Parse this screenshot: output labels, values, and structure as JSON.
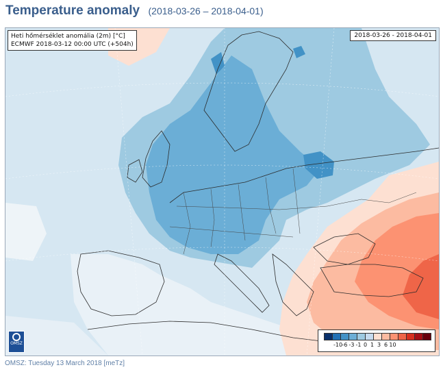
{
  "header": {
    "title": "Temperature anomaly",
    "subtitle": "(2018-03-26 – 2018-04-01)"
  },
  "map": {
    "info_line1": "Heti hőmérséklet anomália (2m) [°C]",
    "info_line2": "ECMWF 2018-03-12 00:00 UTC (+504h)",
    "date_range": "2018-03-26 - 2018-04-01",
    "logo_text": "OMSZ",
    "legend": {
      "colors": [
        "#08306b",
        "#2171b5",
        "#4292c6",
        "#6baed6",
        "#9ecae1",
        "#c6dbef",
        "#fde0d2",
        "#fcbba1",
        "#fc9272",
        "#ef6548",
        "#d7301f",
        "#a50f15",
        "#67000d"
      ],
      "labels": [
        "-10",
        "-6",
        "-3",
        "-1",
        "0",
        "1",
        "3",
        "6",
        "10"
      ]
    }
  },
  "footer": {
    "text": "OMSZ: Tuesday 13 March 2018  [meTz]"
  }
}
